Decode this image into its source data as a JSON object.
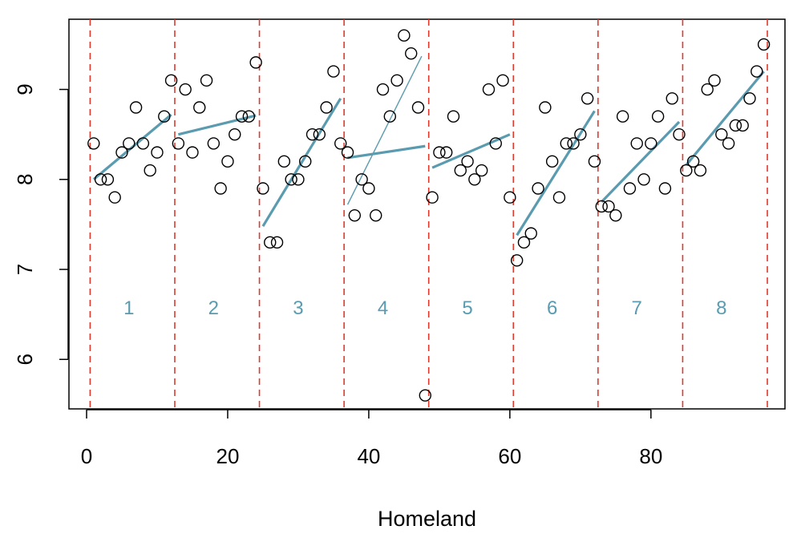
{
  "chart_data": {
    "type": "scatter",
    "xlabel": "Homeland",
    "ylabel": "",
    "xlim": [
      -2.5,
      99
    ],
    "ylim": [
      5.45,
      9.78
    ],
    "x_ticks": [
      0,
      20,
      40,
      60,
      80
    ],
    "y_ticks": [
      6,
      7,
      8,
      9
    ],
    "grid": false,
    "colors": {
      "points": "#000000",
      "fit": "#5a9bb0",
      "breaks": "#e0392b",
      "segment_labels": "#5a9bb0"
    },
    "breaks": [
      0.5,
      12.5,
      24.5,
      36.5,
      48.5,
      60.5,
      72.5,
      84.5,
      96.5
    ],
    "segment_labels": [
      {
        "text": "1",
        "x": 6,
        "y": 6.58
      },
      {
        "text": "2",
        "x": 18,
        "y": 6.58
      },
      {
        "text": "3",
        "x": 30,
        "y": 6.58
      },
      {
        "text": "4",
        "x": 42,
        "y": 6.58
      },
      {
        "text": "5",
        "x": 54,
        "y": 6.58
      },
      {
        "text": "6",
        "x": 66,
        "y": 6.58
      },
      {
        "text": "7",
        "x": 78,
        "y": 6.58
      },
      {
        "text": "8",
        "x": 90,
        "y": 6.58
      }
    ],
    "x": [
      1,
      2,
      3,
      4,
      5,
      6,
      7,
      8,
      9,
      10,
      11,
      12,
      13,
      14,
      15,
      16,
      17,
      18,
      19,
      20,
      21,
      22,
      23,
      24,
      25,
      26,
      27,
      28,
      29,
      30,
      31,
      32,
      33,
      34,
      35,
      36,
      37,
      38,
      39,
      40,
      41,
      42,
      43,
      44,
      45,
      46,
      47,
      48,
      49,
      50,
      51,
      52,
      53,
      54,
      55,
      56,
      57,
      58,
      59,
      60,
      61,
      62,
      63,
      64,
      65,
      66,
      67,
      68,
      69,
      70,
      71,
      72,
      73,
      74,
      75,
      76,
      77,
      78,
      79,
      80,
      81,
      82,
      83,
      84,
      85,
      86,
      87,
      88,
      89,
      90,
      91,
      92,
      93,
      94,
      95,
      96
    ],
    "y": [
      8.4,
      8.0,
      8.0,
      7.8,
      8.3,
      8.4,
      8.8,
      8.4,
      8.1,
      8.3,
      8.7,
      9.1,
      8.4,
      9.0,
      8.3,
      8.8,
      9.1,
      8.4,
      7.9,
      8.2,
      8.5,
      8.7,
      8.7,
      9.3,
      7.9,
      7.3,
      7.3,
      8.2,
      8.0,
      8.0,
      8.2,
      8.5,
      8.5,
      8.8,
      9.2,
      8.4,
      8.3,
      7.6,
      8.0,
      7.9,
      7.6,
      9.0,
      8.7,
      9.1,
      9.6,
      9.4,
      8.8,
      5.6,
      7.8,
      8.3,
      8.3,
      8.7,
      8.1,
      8.2,
      8.0,
      8.1,
      9.0,
      8.4,
      9.1,
      7.8,
      7.1,
      7.3,
      7.4,
      7.9,
      8.8,
      8.2,
      7.8,
      8.4,
      8.4,
      8.5,
      8.9,
      8.2,
      7.7,
      7.7,
      7.6,
      8.7,
      7.9,
      8.4,
      8.0,
      8.4,
      8.7,
      7.9,
      8.9,
      8.5,
      8.1,
      8.2,
      8.1,
      9.0,
      9.1,
      8.5,
      8.4,
      8.6,
      8.6,
      8.9,
      9.2,
      9.5
    ],
    "fit_segments": [
      {
        "x": [
          1,
          12
        ],
        "y": [
          8.0,
          8.72
        ],
        "weight": "thick"
      },
      {
        "x": [
          13,
          24
        ],
        "y": [
          8.5,
          8.71
        ],
        "weight": "thick"
      },
      {
        "x": [
          25,
          36
        ],
        "y": [
          7.48,
          8.9
        ],
        "weight": "thick"
      },
      {
        "x": [
          37,
          48
        ],
        "y": [
          8.24,
          8.37
        ],
        "weight": "thick"
      },
      {
        "x": [
          37,
          47.5
        ],
        "y": [
          7.72,
          9.37
        ],
        "weight": "thin"
      },
      {
        "x": [
          49,
          60
        ],
        "y": [
          8.13,
          8.5
        ],
        "weight": "thick"
      },
      {
        "x": [
          61,
          72
        ],
        "y": [
          7.38,
          8.76
        ],
        "weight": "thick"
      },
      {
        "x": [
          73,
          84
        ],
        "y": [
          7.75,
          8.64
        ],
        "weight": "thick"
      },
      {
        "x": [
          85,
          96
        ],
        "y": [
          8.16,
          9.2
        ],
        "weight": "thick"
      }
    ]
  }
}
